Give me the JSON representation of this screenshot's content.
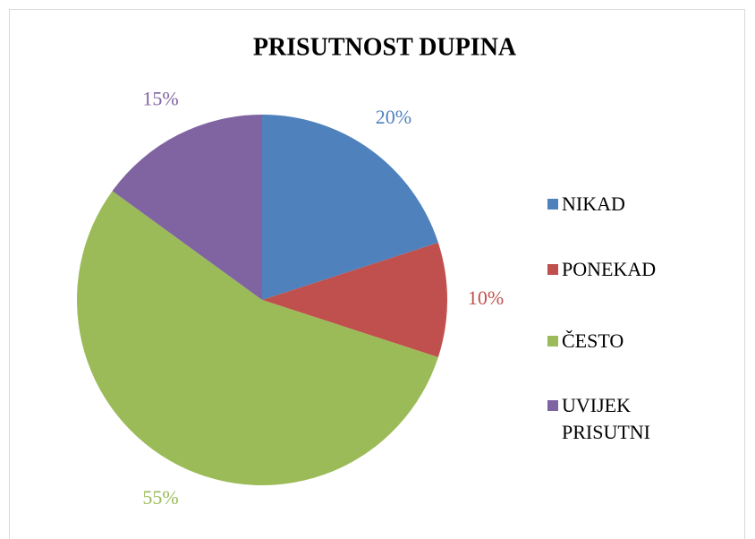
{
  "chart_data": {
    "type": "pie",
    "title": "PRISUTNOST DUPINA",
    "categories": [
      "NIKAD",
      "PONEKAD",
      "ČESTO",
      "UVIJEK PRISUTNI"
    ],
    "values": [
      20,
      10,
      55,
      15
    ],
    "value_labels": [
      "20%",
      "10%",
      "55%",
      "15%"
    ],
    "colors": [
      "#4f81bd",
      "#c0504d",
      "#9bbb59",
      "#8064a2"
    ],
    "legend": "right"
  }
}
